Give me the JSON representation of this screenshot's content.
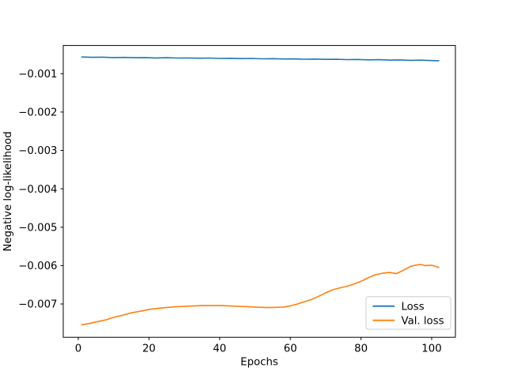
{
  "figure": {
    "background": "#ffffff",
    "frame_color": "#000000",
    "tick_color": "#000000",
    "text_color": "#000000"
  },
  "chart_data": {
    "type": "line",
    "title": "",
    "xlabel": "Epochs",
    "ylabel": "Negative log-likelihood",
    "xlim": [
      -4.25,
      106.7
    ],
    "ylim": [
      -0.007868,
      -0.000266
    ],
    "xticks": [
      0,
      20,
      40,
      60,
      80,
      100
    ],
    "yticks": [
      -0.001,
      -0.002,
      -0.003,
      -0.004,
      -0.005,
      -0.006,
      -0.007
    ],
    "grid": false,
    "legend": {
      "position": "lower right",
      "border_color": "#cccccc",
      "background": "#ffffff",
      "entries": [
        "Loss",
        "Val. loss"
      ]
    },
    "series": [
      {
        "name": "Loss",
        "color": "#1f77b4",
        "x": [
          1,
          4,
          7,
          10,
          13,
          16,
          19,
          22,
          25,
          28,
          31,
          34,
          37,
          40,
          43,
          46,
          49,
          52,
          55,
          58,
          61,
          64,
          67,
          70,
          73,
          76,
          79,
          82,
          85,
          88,
          91,
          94,
          97,
          100,
          102
        ],
        "y": [
          -0.000567,
          -0.000574,
          -0.00057,
          -0.000581,
          -0.000576,
          -0.000585,
          -0.00058,
          -0.00059,
          -0.000585,
          -0.000594,
          -0.00059,
          -0.000598,
          -0.000594,
          -0.000603,
          -0.000599,
          -0.000608,
          -0.000604,
          -0.000613,
          -0.00061,
          -0.000618,
          -0.000615,
          -0.000624,
          -0.00062,
          -0.000629,
          -0.000626,
          -0.000634,
          -0.000631,
          -0.00064,
          -0.000637,
          -0.000646,
          -0.000643,
          -0.000652,
          -0.000649,
          -0.000658,
          -0.000662
        ]
      },
      {
        "name": "Val. loss",
        "color": "#ff7f0e",
        "x": [
          1,
          3,
          5,
          8,
          10,
          13,
          15,
          18,
          20,
          23,
          25,
          28,
          30,
          33,
          35,
          38,
          40,
          43,
          45,
          48,
          50,
          53,
          55,
          58,
          60,
          62,
          64,
          66,
          68,
          70,
          72,
          74,
          76,
          78,
          80,
          82,
          84,
          86,
          88,
          90,
          92,
          94,
          96,
          97,
          98,
          100,
          102
        ],
        "y": [
          -0.00754,
          -0.00751,
          -0.00747,
          -0.00741,
          -0.00735,
          -0.00728,
          -0.00723,
          -0.00718,
          -0.00714,
          -0.00711,
          -0.00709,
          -0.00707,
          -0.00706,
          -0.00705,
          -0.00704,
          -0.00704,
          -0.00704,
          -0.00705,
          -0.00706,
          -0.00707,
          -0.00708,
          -0.00709,
          -0.00709,
          -0.00708,
          -0.00705,
          -0.007,
          -0.00694,
          -0.00688,
          -0.0068,
          -0.00671,
          -0.00663,
          -0.00658,
          -0.00654,
          -0.00648,
          -0.00641,
          -0.00632,
          -0.00624,
          -0.0062,
          -0.00618,
          -0.00621,
          -0.00612,
          -0.00602,
          -0.00598,
          -0.00597,
          -0.006,
          -0.00599,
          -0.00605
        ]
      }
    ]
  }
}
